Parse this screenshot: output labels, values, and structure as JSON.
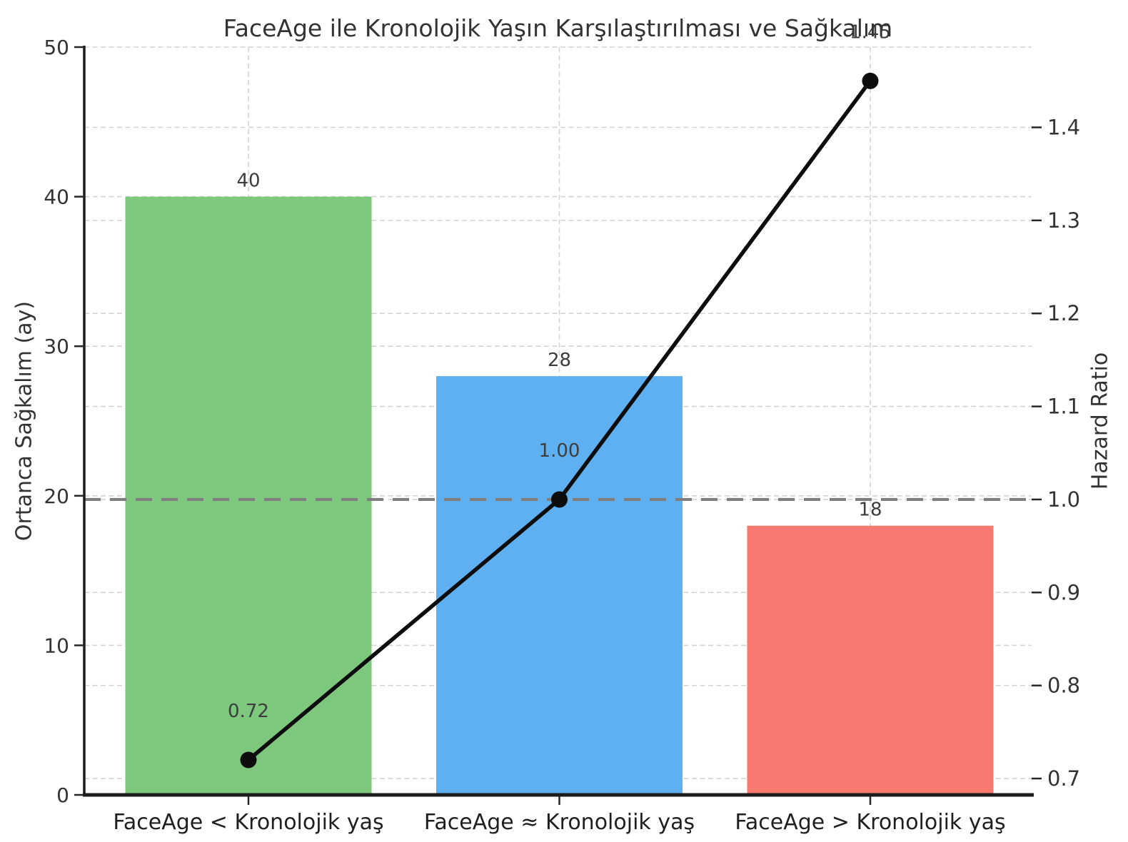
{
  "chart_data": {
    "type": "bar+line",
    "title": "FaceAge ile Kronolojik Yaşın Karşılaştırılması ve Sağkalım",
    "categories": [
      "FaceAge < Kronolojik yaş",
      "FaceAge ≈ Kronolojik yaş",
      "FaceAge > Kronolojik yaş"
    ],
    "bar_series": {
      "name": "Ortanca Sağkalım (ay)",
      "axis": "left",
      "values": [
        40,
        28,
        18
      ],
      "data_labels": [
        "40",
        "28",
        "18"
      ],
      "colors": [
        "#7ec87e",
        "#5fb0f0",
        "#f7796f"
      ]
    },
    "line_series": {
      "name": "Hazard Ratio",
      "axis": "right",
      "values": [
        0.72,
        1.0,
        1.45
      ],
      "data_labels": [
        "0.72",
        "1.00",
        "1.45"
      ],
      "color": "#0d0d0d",
      "marker": "circle"
    },
    "reference_line": {
      "axis": "right",
      "value": 1.0,
      "style": "dashed",
      "color": "#7f7f7f"
    },
    "left_axis": {
      "label": "Ortanca Sağkalım (ay)",
      "min": 0,
      "max": 50,
      "ticks": [
        0,
        10,
        20,
        30,
        40,
        50
      ],
      "tick_labels": [
        "0",
        "10",
        "20",
        "30",
        "40",
        "50"
      ]
    },
    "right_axis": {
      "label": "Hazard Ratio",
      "min": 0.6824,
      "max": 1.4863,
      "ticks": [
        0.7,
        0.8,
        0.9,
        1.0,
        1.1,
        1.2,
        1.3,
        1.4
      ],
      "tick_labels": [
        "0.7",
        "0.8",
        "0.9",
        "1.0",
        "1.1",
        "1.2",
        "1.3",
        "1.4"
      ]
    },
    "grid": {
      "visible": true,
      "style": "dashed",
      "color": "#d4d4d4"
    },
    "legend": {
      "visible": false
    },
    "colors": {
      "background": "#ffffff",
      "title_text": "#333333",
      "tick_text": "#333333",
      "xtick_text": "#1f1f1f",
      "value_label_text": "#3d3d3d",
      "spine": "#1c1c1c"
    }
  }
}
